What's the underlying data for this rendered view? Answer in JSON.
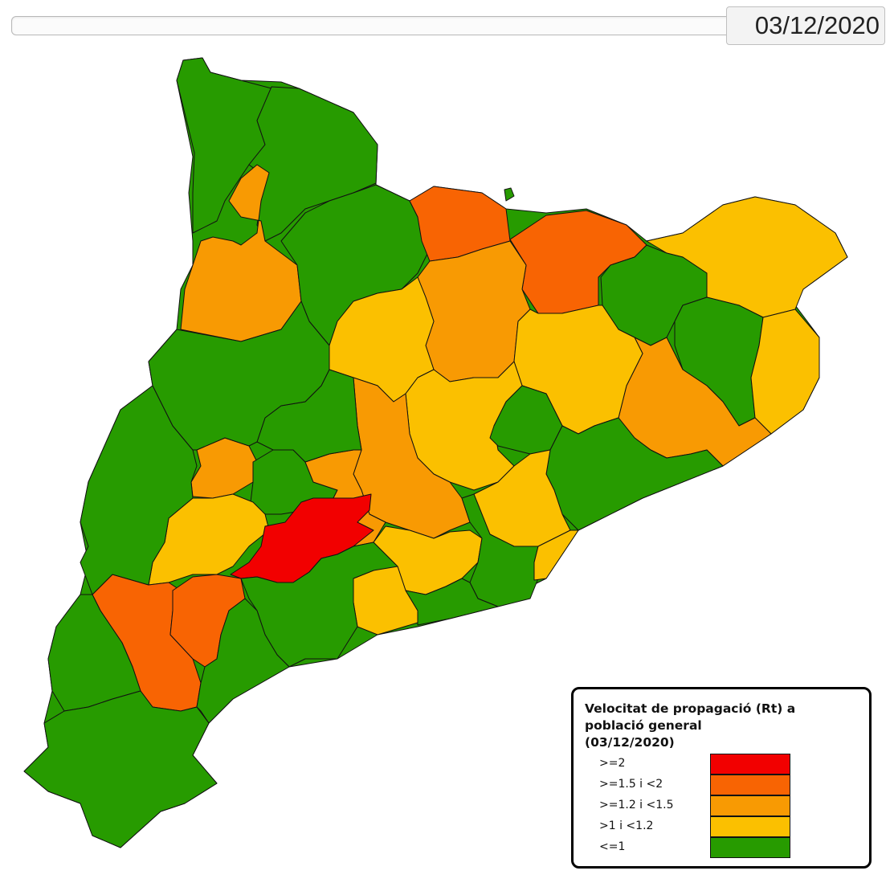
{
  "date_display": "03/12/2020",
  "legend": {
    "title_line1": "Velocitat de propagació (Rt) a",
    "title_line2": "població general",
    "title_line3": "(03/12/2020)",
    "items": [
      {
        "label": ">=2",
        "color": "#f20000"
      },
      {
        "label": ">=1.5 i <2",
        "color": "#f86403"
      },
      {
        "label": ">=1.2 i <1.5",
        "color": "#f89a03"
      },
      {
        "label": ">1 i <1.2",
        "color": "#fbc000"
      },
      {
        "label": "<=1",
        "color": "#279b00"
      }
    ]
  },
  "regions": [
    {
      "id": "r01",
      "category": "<=1"
    },
    {
      "id": "r02",
      "category": "<=1"
    },
    {
      "id": "r03",
      "category": ">=1.2 i <1.5"
    },
    {
      "id": "r04",
      "category": "<=1"
    },
    {
      "id": "r05",
      "category": ">=1.5 i <2"
    },
    {
      "id": "r06",
      "category": ">=1.5 i <2"
    },
    {
      "id": "r07",
      "category": ">1 i <1.2"
    },
    {
      "id": "r08",
      "category": "<=1"
    },
    {
      "id": "r09",
      "category": ">=1.2 i <1.5"
    },
    {
      "id": "r10",
      "category": "<=1"
    },
    {
      "id": "r11",
      "category": ">1 i <1.2"
    },
    {
      "id": "r12",
      "category": ">=1.2 i <1.5"
    },
    {
      "id": "r13",
      "category": ">1 i <1.2"
    },
    {
      "id": "r14",
      "category": ">1 i <1.2"
    },
    {
      "id": "r15",
      "category": ">1 i <1.2"
    },
    {
      "id": "r16",
      "category": "<=1"
    },
    {
      "id": "r17",
      "category": ">=1.2 i <1.5"
    },
    {
      "id": "r18",
      "category": "<=1"
    },
    {
      "id": "r19",
      "category": ">1 i <1.2"
    },
    {
      "id": "r20",
      "category": ">=1.2 i <1.5"
    },
    {
      "id": "r21",
      "category": "<=1"
    },
    {
      "id": "r22",
      "category": ">=1.2 i <1.5"
    },
    {
      "id": "r23",
      "category": "<=1"
    },
    {
      "id": "r24",
      "category": ">1 i <1.2"
    },
    {
      "id": "r25",
      "category": ">=2"
    },
    {
      "id": "r26",
      "category": ">1 i <1.2"
    },
    {
      "id": "r27",
      "category": ">1 i <1.2"
    },
    {
      "id": "r28",
      "category": "<=1"
    },
    {
      "id": "r29",
      "category": ">1 i <1.2"
    },
    {
      "id": "r30",
      "category": "<=1"
    },
    {
      "id": "r31",
      "category": "<=1"
    },
    {
      "id": "r32",
      "category": ">=1.5 i <2"
    },
    {
      "id": "r33",
      "category": ">=1.5 i <2"
    },
    {
      "id": "r34",
      "category": "<=1"
    },
    {
      "id": "r35",
      "category": "<=1"
    },
    {
      "id": "r36",
      "category": "<=1"
    },
    {
      "id": "r37",
      "category": "<=1"
    },
    {
      "id": "r38",
      "category": "<=1"
    },
    {
      "id": "r39",
      "category": "<=1"
    }
  ]
}
